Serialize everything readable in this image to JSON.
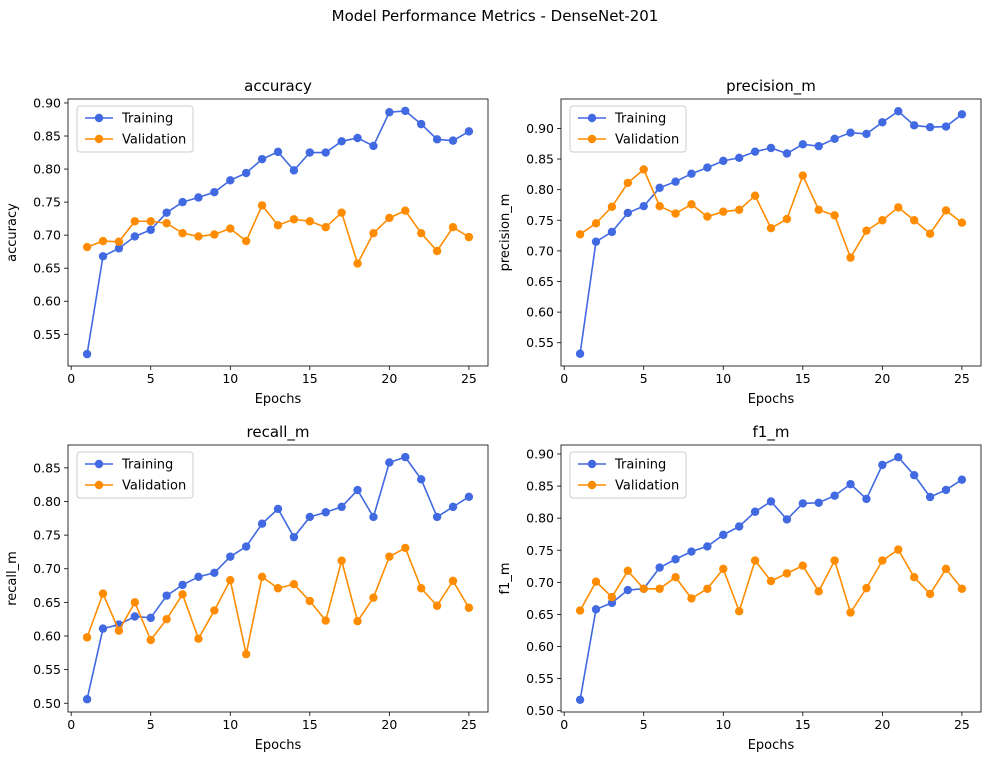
{
  "suptitle": "Model Performance Metrics - DenseNet-201",
  "colors": {
    "training": "#4169E1",
    "validation": "#FF8C00"
  },
  "chart_data": [
    {
      "type": "line",
      "title": "accuracy",
      "xlabel": "Epochs",
      "ylabel": "accuracy",
      "xticks": [
        0,
        5,
        10,
        15,
        20,
        25
      ],
      "yticks": [
        "0.55",
        "0.60",
        "0.65",
        "0.70",
        "0.75",
        "0.80",
        "0.85",
        "0.90"
      ],
      "xlim": [
        -0.2,
        26.2
      ],
      "ylim": [
        0.502,
        0.906
      ],
      "legend": "upper-left",
      "x": [
        1,
        2,
        3,
        4,
        5,
        6,
        7,
        8,
        9,
        10,
        11,
        12,
        13,
        14,
        15,
        16,
        17,
        18,
        19,
        20,
        21,
        22,
        23,
        24,
        25
      ],
      "series": [
        {
          "name": "Training",
          "values": [
            0.52,
            0.668,
            0.68,
            0.698,
            0.708,
            0.734,
            0.75,
            0.757,
            0.765,
            0.783,
            0.794,
            0.815,
            0.826,
            0.798,
            0.825,
            0.825,
            0.842,
            0.847,
            0.835,
            0.886,
            0.888,
            0.868,
            0.845,
            0.843,
            0.857
          ]
        },
        {
          "name": "Validation",
          "values": [
            0.682,
            0.691,
            0.69,
            0.721,
            0.721,
            0.718,
            0.703,
            0.698,
            0.701,
            0.71,
            0.691,
            0.745,
            0.715,
            0.724,
            0.721,
            0.712,
            0.734,
            0.657,
            0.703,
            0.726,
            0.737,
            0.703,
            0.676,
            0.712,
            0.697
          ]
        }
      ]
    },
    {
      "type": "line",
      "title": "precision_m",
      "xlabel": "Epochs",
      "ylabel": "precision_m",
      "xticks": [
        0,
        5,
        10,
        15,
        20,
        25
      ],
      "yticks": [
        "0.55",
        "0.60",
        "0.65",
        "0.70",
        "0.75",
        "0.80",
        "0.85",
        "0.90"
      ],
      "xlim": [
        -0.2,
        26.2
      ],
      "ylim": [
        0.512,
        0.948
      ],
      "legend": "upper-left",
      "x": [
        1,
        2,
        3,
        4,
        5,
        6,
        7,
        8,
        9,
        10,
        11,
        12,
        13,
        14,
        15,
        16,
        17,
        18,
        19,
        20,
        21,
        22,
        23,
        24,
        25
      ],
      "series": [
        {
          "name": "Training",
          "values": [
            0.532,
            0.715,
            0.731,
            0.762,
            0.773,
            0.803,
            0.813,
            0.826,
            0.836,
            0.847,
            0.852,
            0.862,
            0.868,
            0.859,
            0.874,
            0.871,
            0.883,
            0.893,
            0.891,
            0.91,
            0.928,
            0.905,
            0.902,
            0.903,
            0.923
          ]
        },
        {
          "name": "Validation",
          "values": [
            0.727,
            0.745,
            0.772,
            0.811,
            0.833,
            0.773,
            0.761,
            0.776,
            0.756,
            0.764,
            0.767,
            0.79,
            0.737,
            0.752,
            0.823,
            0.767,
            0.758,
            0.689,
            0.733,
            0.75,
            0.771,
            0.75,
            0.728,
            0.766,
            0.746
          ]
        }
      ]
    },
    {
      "type": "line",
      "title": "recall_m",
      "xlabel": "Epochs",
      "ylabel": "recall_m",
      "xticks": [
        0,
        5,
        10,
        15,
        20,
        25
      ],
      "yticks": [
        "0.50",
        "0.55",
        "0.60",
        "0.65",
        "0.70",
        "0.75",
        "0.80",
        "0.85"
      ],
      "xlim": [
        -0.2,
        26.2
      ],
      "ylim": [
        0.487,
        0.884
      ],
      "legend": "upper-left",
      "x": [
        1,
        2,
        3,
        4,
        5,
        6,
        7,
        8,
        9,
        10,
        11,
        12,
        13,
        14,
        15,
        16,
        17,
        18,
        19,
        20,
        21,
        22,
        23,
        24,
        25
      ],
      "series": [
        {
          "name": "Training",
          "values": [
            0.506,
            0.611,
            0.617,
            0.629,
            0.627,
            0.66,
            0.676,
            0.688,
            0.694,
            0.718,
            0.733,
            0.767,
            0.789,
            0.747,
            0.777,
            0.784,
            0.792,
            0.817,
            0.777,
            0.858,
            0.866,
            0.833,
            0.777,
            0.792,
            0.807
          ]
        },
        {
          "name": "Validation",
          "values": [
            0.598,
            0.663,
            0.608,
            0.65,
            0.594,
            0.625,
            0.662,
            0.596,
            0.638,
            0.683,
            0.573,
            0.688,
            0.671,
            0.677,
            0.652,
            0.623,
            0.712,
            0.622,
            0.657,
            0.718,
            0.731,
            0.671,
            0.645,
            0.682,
            0.642
          ]
        }
      ]
    },
    {
      "type": "line",
      "title": "f1_m",
      "xlabel": "Epochs",
      "ylabel": "f1_m",
      "xticks": [
        0,
        5,
        10,
        15,
        20,
        25
      ],
      "yticks": [
        "0.50",
        "0.55",
        "0.60",
        "0.65",
        "0.70",
        "0.75",
        "0.80",
        "0.85",
        "0.90"
      ],
      "xlim": [
        -0.2,
        26.2
      ],
      "ylim": [
        0.498,
        0.914
      ],
      "legend": "upper-left",
      "x": [
        1,
        2,
        3,
        4,
        5,
        6,
        7,
        8,
        9,
        10,
        11,
        12,
        13,
        14,
        15,
        16,
        17,
        18,
        19,
        20,
        21,
        22,
        23,
        24,
        25
      ],
      "series": [
        {
          "name": "Training",
          "values": [
            0.517,
            0.658,
            0.668,
            0.688,
            0.69,
            0.723,
            0.736,
            0.748,
            0.756,
            0.774,
            0.787,
            0.81,
            0.826,
            0.798,
            0.823,
            0.824,
            0.835,
            0.853,
            0.83,
            0.883,
            0.895,
            0.867,
            0.833,
            0.844,
            0.86
          ]
        },
        {
          "name": "Validation",
          "values": [
            0.656,
            0.701,
            0.677,
            0.718,
            0.69,
            0.69,
            0.708,
            0.675,
            0.69,
            0.721,
            0.655,
            0.734,
            0.702,
            0.714,
            0.726,
            0.686,
            0.734,
            0.653,
            0.691,
            0.734,
            0.751,
            0.708,
            0.682,
            0.721,
            0.69
          ]
        }
      ]
    }
  ]
}
